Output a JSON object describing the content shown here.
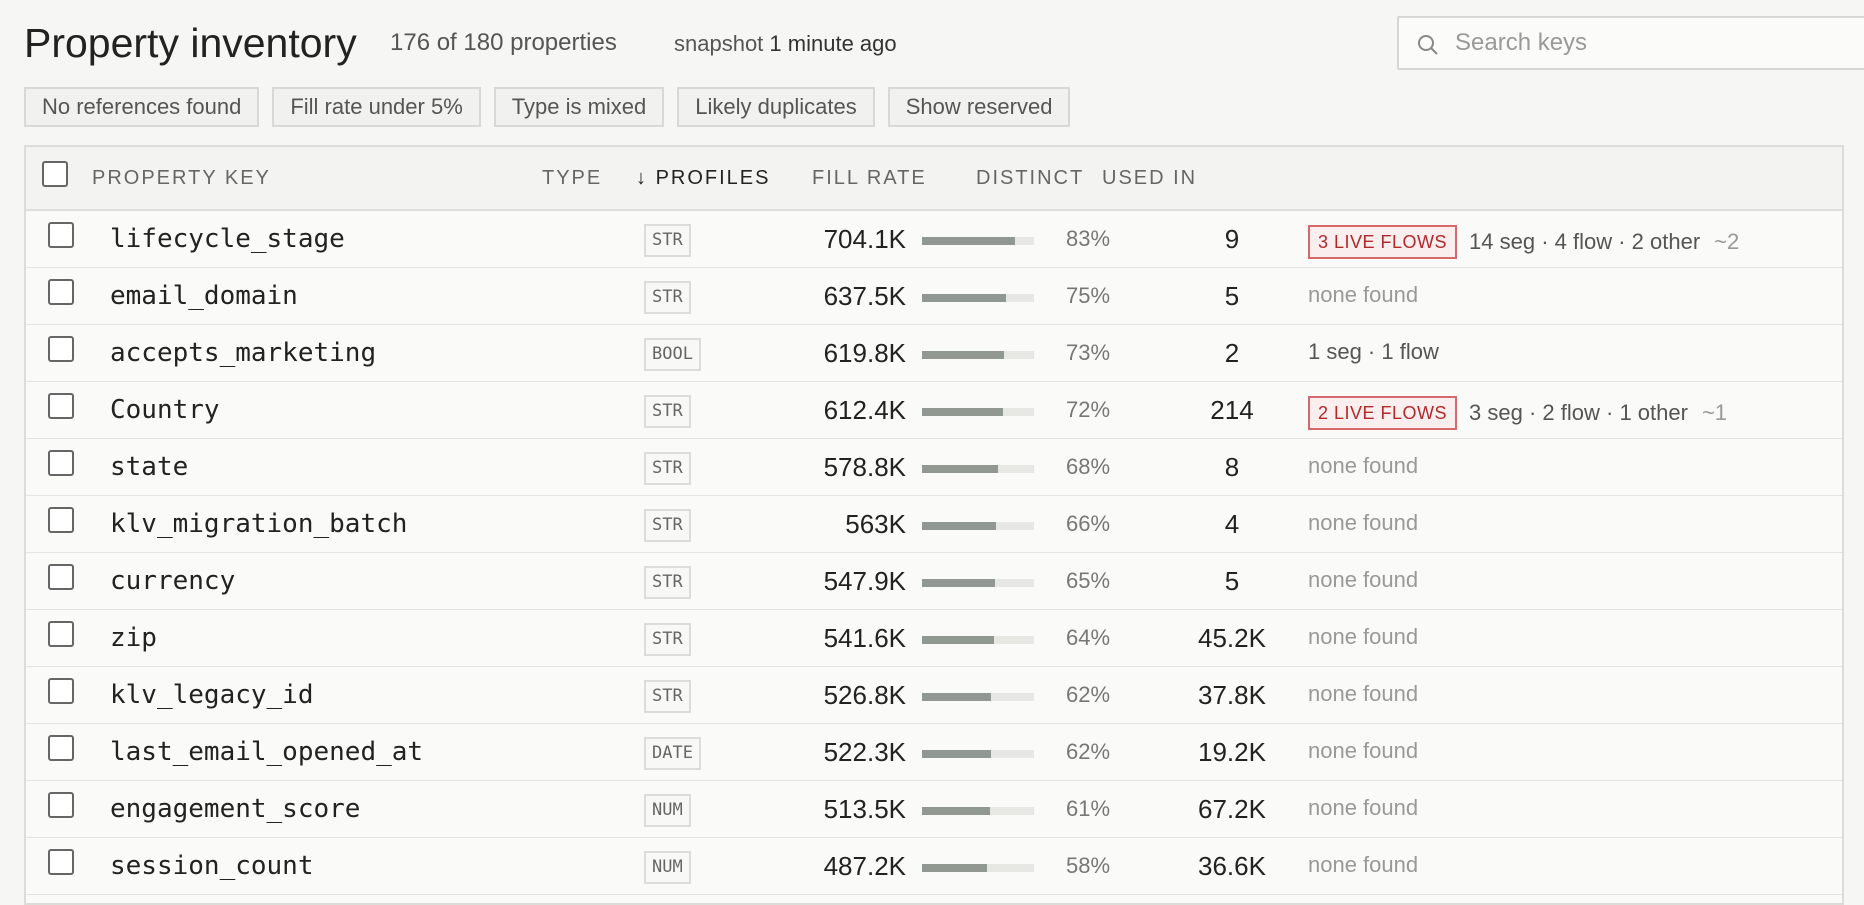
{
  "header": {
    "title": "Property inventory",
    "count": "176 of 180 properties",
    "snapshot_prefix": "snapshot",
    "snapshot_time": "1 minute ago",
    "search_placeholder": "Search keys"
  },
  "filters": [
    "No references found",
    "Fill rate under 5%",
    "Type is mixed",
    "Likely duplicates",
    "Show reserved"
  ],
  "columns": {
    "key": "PROPERTY KEY",
    "type": "TYPE",
    "profiles": "PROFILES",
    "sort_indicator": "↓",
    "fill": "FILL RATE",
    "distinct": "DISTINCT",
    "used": "USED IN"
  },
  "rows": [
    {
      "key": "lifecycle_stage",
      "type": "STR",
      "profiles": "704.1K",
      "fill": 83,
      "fill_label": "83%",
      "distinct": "9",
      "used_badge": "3 LIVE FLOWS",
      "used": "14 seg · 4 flow · 2 other",
      "used_approx": "~2"
    },
    {
      "key": "email_domain",
      "type": "STR",
      "profiles": "637.5K",
      "fill": 75,
      "fill_label": "75%",
      "distinct": "5",
      "used": "none found"
    },
    {
      "key": "accepts_marketing",
      "type": "BOOL",
      "profiles": "619.8K",
      "fill": 73,
      "fill_label": "73%",
      "distinct": "2",
      "used": "1 seg · 1 flow"
    },
    {
      "key": "Country",
      "type": "STR",
      "profiles": "612.4K",
      "fill": 72,
      "fill_label": "72%",
      "distinct": "214",
      "used_badge": "2 LIVE FLOWS",
      "used": "3 seg · 2 flow · 1 other",
      "used_approx": "~1"
    },
    {
      "key": "state",
      "type": "STR",
      "profiles": "578.8K",
      "fill": 68,
      "fill_label": "68%",
      "distinct": "8",
      "used": "none found"
    },
    {
      "key": "klv_migration_batch",
      "type": "STR",
      "profiles": "563K",
      "fill": 66,
      "fill_label": "66%",
      "distinct": "4",
      "used": "none found"
    },
    {
      "key": "currency",
      "type": "STR",
      "profiles": "547.9K",
      "fill": 65,
      "fill_label": "65%",
      "distinct": "5",
      "used": "none found"
    },
    {
      "key": "zip",
      "type": "STR",
      "profiles": "541.6K",
      "fill": 64,
      "fill_label": "64%",
      "distinct": "45.2K",
      "used": "none found"
    },
    {
      "key": "klv_legacy_id",
      "type": "STR",
      "profiles": "526.8K",
      "fill": 62,
      "fill_label": "62%",
      "distinct": "37.8K",
      "used": "none found"
    },
    {
      "key": "last_email_opened_at",
      "type": "DATE",
      "profiles": "522.3K",
      "fill": 62,
      "fill_label": "62%",
      "distinct": "19.2K",
      "used": "none found"
    },
    {
      "key": "engagement_score",
      "type": "NUM",
      "profiles": "513.5K",
      "fill": 61,
      "fill_label": "61%",
      "distinct": "67.2K",
      "used": "none found"
    },
    {
      "key": "session_count",
      "type": "NUM",
      "profiles": "487.2K",
      "fill": 58,
      "fill_label": "58%",
      "distinct": "36.6K",
      "used": "none found"
    }
  ]
}
